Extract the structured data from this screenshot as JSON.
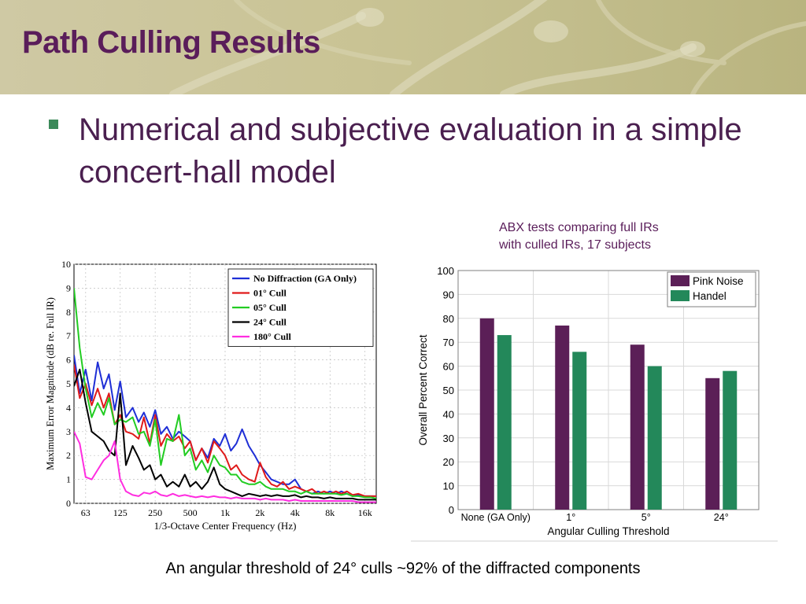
{
  "slide": {
    "title": "Path Culling Results",
    "bullet": "Numerical and subjective evaluation in a simple concert-hall model",
    "abx_note_line1": "ABX tests comparing full IRs",
    "abx_note_line2": "with culled IRs, 17 subjects",
    "caption": "An angular threshold of 24° culls ~92% of the diffracted components"
  },
  "colors": {
    "title": "#5a1d5a",
    "bullet_text": "#4a1f4f",
    "bullet_mark": "#3c8a5a",
    "header_band": "#c9c394"
  },
  "chart_data": [
    {
      "type": "line",
      "xlabel": "1/3-Octave Center Frequency (Hz)",
      "ylabel": "Maximum Error Magnitude (dB re. Full IR)",
      "x_scale": "log",
      "xlim": [
        50,
        20000
      ],
      "ylim": [
        0,
        10
      ],
      "yticks": [
        "0",
        "1",
        "2",
        "3",
        "4",
        "5",
        "6",
        "7",
        "8",
        "9",
        "10"
      ],
      "xtick_values": [
        63,
        125,
        250,
        500,
        1000,
        2000,
        4000,
        8000,
        16000
      ],
      "xtick_labels": [
        "63",
        "125",
        "250",
        "500",
        "1k",
        "2k",
        "4k",
        "8k",
        "16k"
      ],
      "legend_position": "top-right",
      "grid": true,
      "series": [
        {
          "name": "No Diffraction (GA Only)",
          "color": "#1f2fd6",
          "x": [
            50,
            56,
            63,
            71,
            80,
            90,
            100,
            112,
            125,
            140,
            160,
            180,
            200,
            225,
            250,
            280,
            315,
            355,
            400,
            450,
            500,
            560,
            630,
            710,
            800,
            900,
            1000,
            1120,
            1250,
            1400,
            1600,
            1800,
            2000,
            2240,
            2500,
            2800,
            3150,
            3550,
            4000,
            4500,
            5000,
            5600,
            6300,
            7100,
            8000,
            9000,
            10000,
            11200,
            12500,
            14000,
            16000,
            18000,
            20000
          ],
          "y": [
            6.2,
            4.6,
            5.6,
            4.3,
            5.9,
            4.8,
            5.4,
            3.9,
            5.1,
            3.6,
            4.0,
            3.4,
            3.8,
            3.2,
            3.9,
            2.9,
            3.2,
            2.7,
            3.0,
            2.8,
            2.6,
            1.8,
            2.3,
            1.9,
            2.7,
            2.4,
            2.9,
            2.2,
            2.5,
            3.1,
            2.4,
            2.0,
            1.6,
            1.3,
            1.0,
            0.9,
            0.8,
            0.8,
            1.0,
            0.6,
            0.5,
            0.4,
            0.5,
            0.4,
            0.5,
            0.4,
            0.5,
            0.4,
            0.3,
            0.35,
            0.3,
            0.3,
            0.3
          ]
        },
        {
          "name": "01° Cull",
          "color": "#e01a1a",
          "x": [
            50,
            56,
            63,
            71,
            80,
            90,
            100,
            112,
            125,
            140,
            160,
            180,
            200,
            225,
            250,
            280,
            315,
            355,
            400,
            450,
            500,
            560,
            630,
            710,
            800,
            900,
            1000,
            1120,
            1250,
            1400,
            1600,
            1800,
            2000,
            2240,
            2500,
            2800,
            3150,
            3550,
            4000,
            4500,
            5000,
            5600,
            6300,
            7100,
            8000,
            9000,
            10000,
            11200,
            12500,
            14000,
            16000,
            18000,
            20000
          ],
          "y": [
            5.8,
            4.4,
            5.0,
            4.1,
            4.8,
            4.0,
            4.6,
            3.3,
            3.7,
            3.0,
            2.9,
            2.7,
            3.6,
            2.5,
            3.7,
            2.4,
            2.9,
            2.6,
            2.8,
            2.3,
            2.6,
            1.8,
            2.3,
            1.7,
            2.6,
            2.3,
            2.0,
            1.4,
            1.6,
            1.2,
            1.0,
            0.9,
            1.7,
            1.1,
            0.8,
            0.7,
            0.9,
            0.6,
            0.7,
            0.6,
            0.5,
            0.6,
            0.4,
            0.5,
            0.4,
            0.5,
            0.4,
            0.5,
            0.35,
            0.4,
            0.3,
            0.3,
            0.3
          ]
        },
        {
          "name": "05° Cull",
          "color": "#22cc22",
          "x": [
            50,
            56,
            63,
            71,
            80,
            90,
            100,
            112,
            125,
            140,
            160,
            180,
            200,
            225,
            250,
            280,
            315,
            355,
            400,
            450,
            500,
            560,
            630,
            710,
            800,
            900,
            1000,
            1120,
            1250,
            1400,
            1600,
            1800,
            2000,
            2240,
            2500,
            2800,
            3150,
            3550,
            4000,
            4500,
            5000,
            5600,
            6300,
            7100,
            8000,
            9000,
            10000,
            11200,
            12500,
            14000,
            16000,
            18000,
            20000
          ],
          "y": [
            9.0,
            6.5,
            4.8,
            3.6,
            4.2,
            3.7,
            4.4,
            3.3,
            3.5,
            3.4,
            3.6,
            2.9,
            3.0,
            2.4,
            3.5,
            1.6,
            2.7,
            2.6,
            3.7,
            2.0,
            2.3,
            1.4,
            1.8,
            1.3,
            2.0,
            1.6,
            1.5,
            1.2,
            1.2,
            0.9,
            0.8,
            0.8,
            0.9,
            0.7,
            0.6,
            0.6,
            0.6,
            0.5,
            0.5,
            0.4,
            0.5,
            0.4,
            0.4,
            0.4,
            0.4,
            0.4,
            0.35,
            0.4,
            0.3,
            0.3,
            0.25,
            0.25,
            0.2
          ]
        },
        {
          "name": "24° Cull",
          "color": "#000000",
          "x": [
            50,
            56,
            63,
            71,
            80,
            90,
            100,
            112,
            125,
            140,
            160,
            180,
            200,
            225,
            250,
            280,
            315,
            355,
            400,
            450,
            500,
            560,
            630,
            710,
            800,
            900,
            1000,
            1120,
            1250,
            1400,
            1600,
            1800,
            2000,
            2240,
            2500,
            2800,
            3150,
            3550,
            4000,
            4500,
            5000,
            5600,
            6300,
            7100,
            8000,
            9000,
            10000,
            11200,
            12500,
            14000,
            16000,
            18000,
            20000
          ],
          "y": [
            4.9,
            5.6,
            4.2,
            3.0,
            2.8,
            2.6,
            2.2,
            2.0,
            4.6,
            1.6,
            2.4,
            1.9,
            1.4,
            1.6,
            1.0,
            1.2,
            0.7,
            0.9,
            0.7,
            1.2,
            0.7,
            0.9,
            0.6,
            0.9,
            1.5,
            0.8,
            0.6,
            0.5,
            0.4,
            0.3,
            0.4,
            0.35,
            0.3,
            0.35,
            0.3,
            0.35,
            0.3,
            0.3,
            0.35,
            0.25,
            0.3,
            0.25,
            0.25,
            0.2,
            0.25,
            0.2,
            0.2,
            0.2,
            0.2,
            0.15,
            0.15,
            0.15,
            0.15
          ]
        },
        {
          "name": "180° Cull",
          "color": "#ff2de0",
          "x": [
            50,
            56,
            63,
            71,
            80,
            90,
            100,
            112,
            125,
            140,
            160,
            180,
            200,
            225,
            250,
            280,
            315,
            355,
            400,
            450,
            500,
            560,
            630,
            710,
            800,
            900,
            1000,
            1120,
            1250,
            1400,
            1600,
            1800,
            2000,
            2240,
            2500,
            2800,
            3150,
            3550,
            4000,
            4500,
            5000,
            5600,
            6300,
            7100,
            8000,
            9000,
            10000,
            11200,
            12500,
            14000,
            16000,
            18000,
            20000
          ],
          "y": [
            3.0,
            2.5,
            1.1,
            1.0,
            1.4,
            1.8,
            2.0,
            2.6,
            1.0,
            0.5,
            0.35,
            0.3,
            0.45,
            0.4,
            0.5,
            0.35,
            0.3,
            0.4,
            0.3,
            0.35,
            0.3,
            0.25,
            0.3,
            0.25,
            0.3,
            0.25,
            0.25,
            0.2,
            0.25,
            0.2,
            0.2,
            0.2,
            0.15,
            0.2,
            0.15,
            0.15,
            0.15,
            0.1,
            0.15,
            0.1,
            0.1,
            0.1,
            0.1,
            0.1,
            0.1,
            0.1,
            0.1,
            0.1,
            0.1,
            0.05,
            0.05,
            0.05,
            0.05
          ]
        }
      ]
    },
    {
      "type": "bar",
      "xlabel": "Angular Culling Threshold",
      "ylabel": "Overall Percent Correct",
      "categories": [
        "None (GA Only)",
        "1°",
        "5°",
        "24°"
      ],
      "ylim": [
        0,
        100
      ],
      "yticks": [
        "0",
        "10",
        "20",
        "30",
        "40",
        "50",
        "60",
        "70",
        "80",
        "90",
        "100"
      ],
      "legend_position": "top-right",
      "grid": true,
      "series": [
        {
          "name": "Pink Noise",
          "color": "#5b1f57",
          "values": [
            80,
            77,
            69,
            55
          ]
        },
        {
          "name": "Handel",
          "color": "#23885a",
          "values": [
            73,
            66,
            60,
            58
          ]
        }
      ]
    }
  ]
}
